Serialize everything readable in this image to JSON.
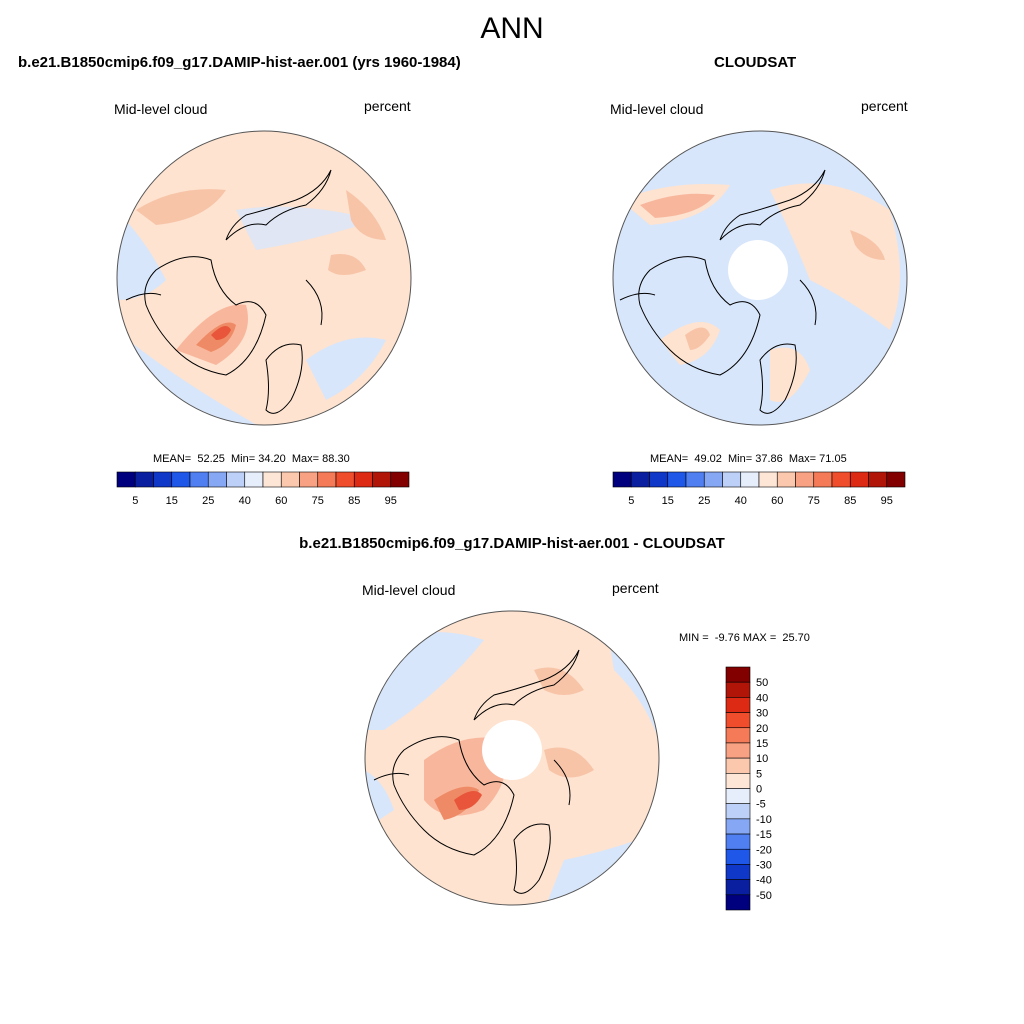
{
  "figure": {
    "title": "ANN"
  },
  "panels": [
    {
      "id": "model",
      "title": "b.e21.B1850cmip6.f09_g17.DAMIP-hist-aer.001 (yrs 1960-1984)",
      "left_label": "Mid-level cloud",
      "right_label": "percent",
      "stats": {
        "mean_label": "MEAN=",
        "mean": "52.25",
        "min_label": "Min=",
        "min": "34.20",
        "max_label": "Max=",
        "max": "88.30"
      },
      "polar_hole": false
    },
    {
      "id": "obs",
      "title": "CLOUDSAT",
      "left_label": "Mid-level cloud",
      "right_label": "percent",
      "stats": {
        "mean_label": "MEAN=",
        "mean": "49.02",
        "min_label": "Min=",
        "min": "37.86",
        "max_label": "Max=",
        "max": "71.05"
      },
      "polar_hole": true
    },
    {
      "id": "diff",
      "title": "b.e21.B1850cmip6.f09_g17.DAMIP-hist-aer.001 - CLOUDSAT",
      "left_label": "Mid-level cloud",
      "right_label": "percent",
      "stats": {
        "min_label": "MIN =",
        "min": "-9.76",
        "max_label": "MAX =",
        "max": "25.70"
      },
      "polar_hole": true
    }
  ],
  "colorbar_abs": {
    "colors": [
      "#00007f",
      "#0a1fa0",
      "#0f37c8",
      "#1f57e8",
      "#4f7ff0",
      "#86a8f4",
      "#bcd0f8",
      "#e6eefc",
      "#fde6d6",
      "#fcc8ad",
      "#f9a283",
      "#f57a58",
      "#ef4d2c",
      "#dc2a14",
      "#b01508",
      "#820000"
    ],
    "tick_labels": [
      "5",
      "15",
      "25",
      "40",
      "60",
      "75",
      "85",
      "95"
    ]
  },
  "colorbar_diff": {
    "colors": [
      "#00007f",
      "#0a1fa0",
      "#0f37c8",
      "#1f57e8",
      "#4f7ff0",
      "#86a8f4",
      "#bcd0f8",
      "#e6eefc",
      "#fde6d6",
      "#fcc8ad",
      "#f9a283",
      "#f57a58",
      "#ef4d2c",
      "#dc2a14",
      "#b01508",
      "#820000"
    ],
    "tick_labels": [
      "-50",
      "-40",
      "-30",
      "-20",
      "-15",
      "-10",
      "-5",
      "0",
      "5",
      "10",
      "15",
      "20",
      "30",
      "40",
      "50"
    ]
  },
  "colors": {
    "ocean_low": "#d8e6fb",
    "land_mid": "#fde3d0",
    "high": "#f8b79c",
    "peak": "#e8553a",
    "coast": "#000000",
    "border": "#555555"
  }
}
